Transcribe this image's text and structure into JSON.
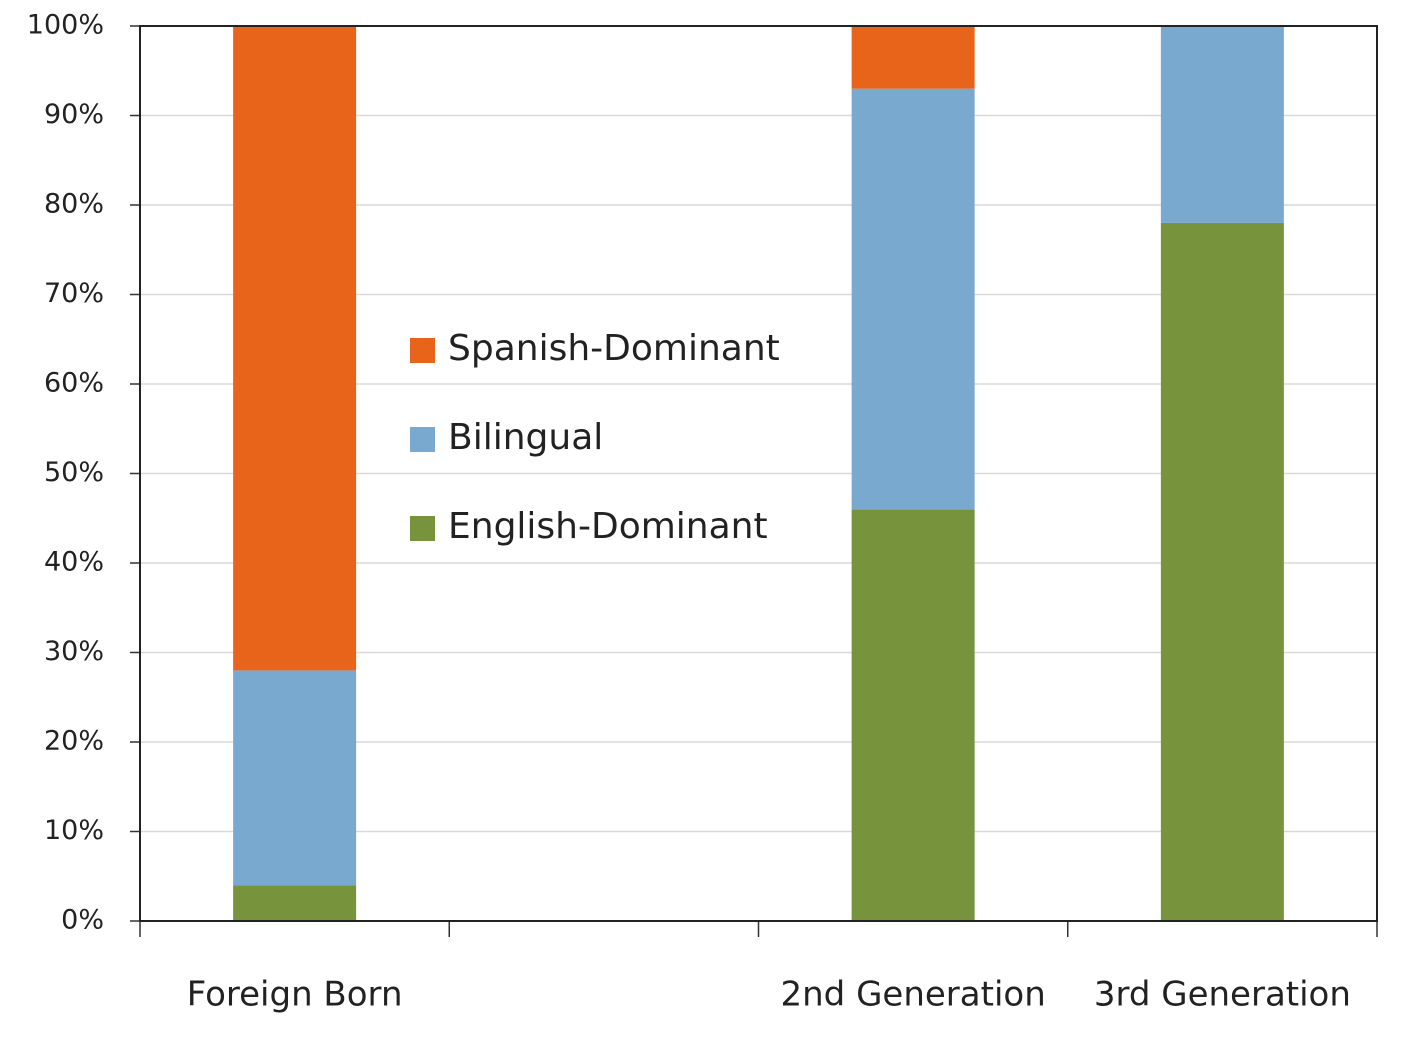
{
  "chart_data": {
    "type": "stacked-bar",
    "categories": [
      "Foreign Born",
      null,
      "2nd Generation",
      "3rd Generation"
    ],
    "series": [
      {
        "name": "English-Dominant",
        "color": "#77933c",
        "values": [
          4,
          null,
          46,
          78
        ]
      },
      {
        "name": "Bilingual",
        "color": "#7aa9cf",
        "values": [
          24,
          null,
          47,
          22
        ]
      },
      {
        "name": "Spanish-Dominant",
        "color": "#e8641a",
        "values": [
          72,
          null,
          7,
          0
        ]
      }
    ],
    "ylim": [
      0,
      100
    ],
    "yticks": [
      {
        "value": 0,
        "label": "0%"
      },
      {
        "value": 10,
        "label": "10%"
      },
      {
        "value": 20,
        "label": "20%"
      },
      {
        "value": 30,
        "label": "30%"
      },
      {
        "value": 40,
        "label": "40%"
      },
      {
        "value": 50,
        "label": "50%"
      },
      {
        "value": 60,
        "label": "60%"
      },
      {
        "value": 70,
        "label": "70%"
      },
      {
        "value": 80,
        "label": "80%"
      },
      {
        "value": 90,
        "label": "90%"
      },
      {
        "value": 100,
        "label": "100%"
      }
    ],
    "grid": true,
    "legend": "inside-left"
  }
}
